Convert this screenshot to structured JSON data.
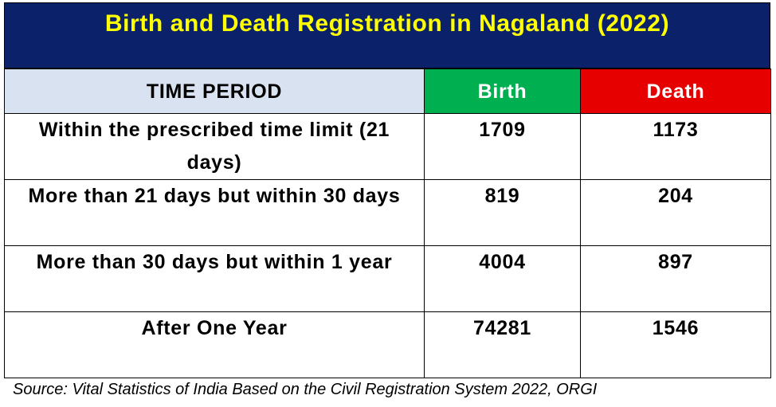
{
  "title": "Birth and Death Registration in Nagaland (2022)",
  "chart_data": {
    "type": "table",
    "title": "Birth and Death Registration in Nagaland (2022)",
    "columns": [
      "TIME PERIOD",
      "Birth",
      "Death"
    ],
    "rows": [
      {
        "period": "Within the prescribed time limit (21 days)",
        "birth": "1709",
        "death": "1173"
      },
      {
        "period": "More than 21 days but within 30 days",
        "birth": "819",
        "death": "204"
      },
      {
        "period": "More than 30 days but within 1 year",
        "birth": "4004",
        "death": "897"
      },
      {
        "period": "After One Year",
        "birth": "74281",
        "death": "1546"
      }
    ]
  },
  "colors": {
    "title_bg": "#0b2169",
    "title_text": "#ffff00",
    "period_header_bg": "#d9e2f1",
    "birth_header_bg": "#00b050",
    "death_header_bg": "#e60000"
  },
  "source": "Source: Vital Statistics of India Based on the Civil Registration System 2022, ORGI"
}
